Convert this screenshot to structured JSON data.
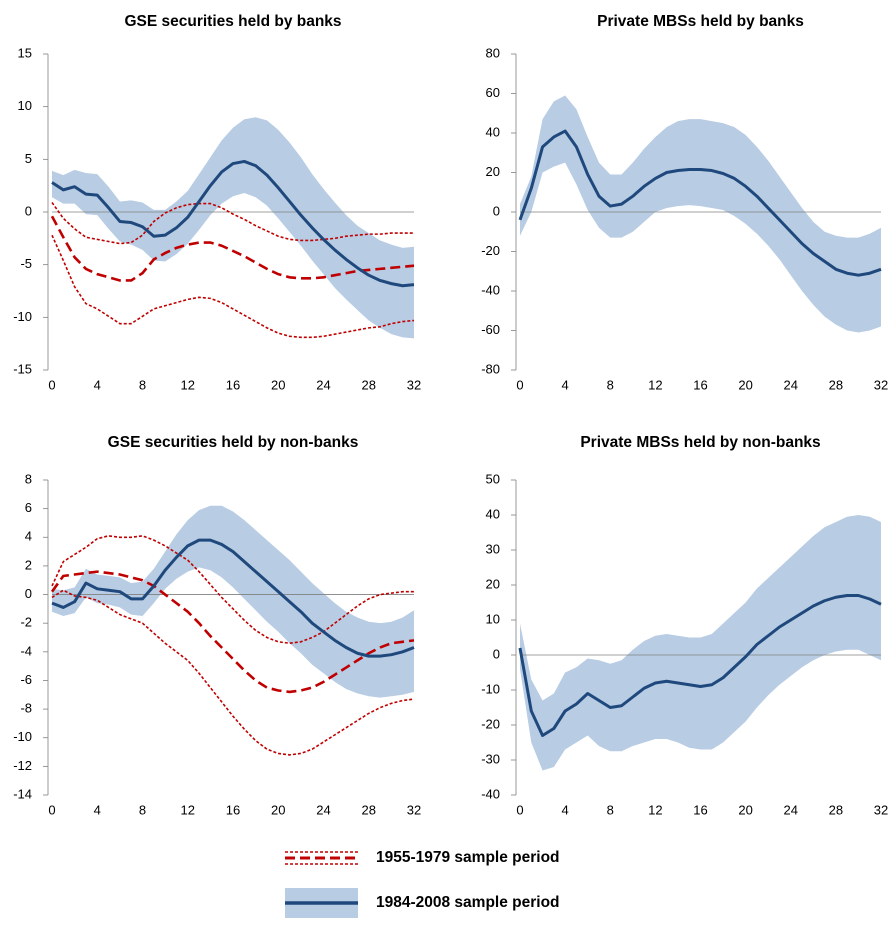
{
  "chart_data": [
    {
      "type": "line",
      "title": "GSE securities held by banks",
      "x": [
        0,
        1,
        2,
        3,
        4,
        5,
        6,
        7,
        8,
        9,
        10,
        11,
        12,
        13,
        14,
        15,
        16,
        17,
        18,
        19,
        20,
        21,
        22,
        23,
        24,
        25,
        26,
        27,
        28,
        29,
        30,
        31,
        32
      ],
      "xlim": [
        0,
        32
      ],
      "xticks": [
        0,
        4,
        8,
        12,
        16,
        20,
        24,
        28,
        32
      ],
      "ylim": [
        -15,
        15
      ],
      "yticks": [
        -15,
        -10,
        -5,
        0,
        5,
        10,
        15
      ],
      "series": [
        {
          "name": "1984-2008 sample period",
          "color": "#1f497d",
          "band_color": "#b8cce4",
          "values": [
            2.8,
            2.1,
            2.4,
            1.7,
            1.6,
            0.4,
            -0.9,
            -1.0,
            -1.4,
            -2.3,
            -2.2,
            -1.5,
            -0.5,
            1.0,
            2.5,
            3.8,
            4.6,
            4.8,
            4.4,
            3.5,
            2.3,
            1.0,
            -0.3,
            -1.5,
            -2.6,
            -3.6,
            -4.5,
            -5.3,
            -6.0,
            -6.5,
            -6.8,
            -7.0,
            -6.9
          ],
          "upper": [
            3.9,
            3.5,
            4.0,
            3.7,
            3.6,
            2.4,
            1.0,
            1.1,
            0.9,
            0.2,
            0.2,
            1.0,
            2.0,
            3.6,
            5.2,
            6.8,
            8.0,
            8.8,
            9.0,
            8.7,
            7.8,
            6.6,
            5.2,
            3.6,
            2.2,
            0.9,
            -0.3,
            -1.3,
            -2.0,
            -2.7,
            -3.1,
            -3.4,
            -3.3
          ],
          "lower": [
            1.4,
            0.8,
            0.8,
            -0.2,
            -0.3,
            -1.6,
            -2.8,
            -3.1,
            -3.6,
            -4.6,
            -4.7,
            -4.0,
            -3.0,
            -1.7,
            -0.3,
            0.8,
            1.5,
            1.8,
            1.4,
            0.6,
            -0.6,
            -1.9,
            -3.2,
            -4.6,
            -5.9,
            -7.2,
            -8.3,
            -9.3,
            -10.3,
            -11.0,
            -11.6,
            -11.9,
            -12.0
          ]
        },
        {
          "name": "1955-1979 sample period",
          "color": "#c00000",
          "values": [
            -0.4,
            -2.4,
            -4.3,
            -5.4,
            -5.9,
            -6.2,
            -6.5,
            -6.5,
            -5.8,
            -4.5,
            -3.9,
            -3.4,
            -3.1,
            -2.9,
            -2.9,
            -3.2,
            -3.7,
            -4.2,
            -4.8,
            -5.4,
            -5.9,
            -6.2,
            -6.3,
            -6.3,
            -6.2,
            -6.0,
            -5.8,
            -5.6,
            -5.5,
            -5.4,
            -5.3,
            -5.2,
            -5.1
          ],
          "upper": [
            0.9,
            -0.6,
            -1.6,
            -2.4,
            -2.6,
            -2.8,
            -3.0,
            -2.9,
            -2.2,
            -0.9,
            -0.1,
            0.4,
            0.7,
            0.8,
            0.8,
            0.4,
            -0.2,
            -0.7,
            -1.3,
            -1.8,
            -2.3,
            -2.6,
            -2.7,
            -2.7,
            -2.6,
            -2.5,
            -2.3,
            -2.2,
            -2.1,
            -2.1,
            -2.0,
            -2.0,
            -2.0
          ],
          "lower": [
            -2.2,
            -4.6,
            -7.1,
            -8.7,
            -9.2,
            -9.9,
            -10.6,
            -10.6,
            -9.9,
            -9.2,
            -8.9,
            -8.6,
            -8.3,
            -8.1,
            -8.2,
            -8.6,
            -9.2,
            -9.8,
            -10.4,
            -11.0,
            -11.5,
            -11.8,
            -11.9,
            -11.9,
            -11.8,
            -11.6,
            -11.4,
            -11.2,
            -11.0,
            -10.9,
            -10.6,
            -10.4,
            -10.3
          ]
        }
      ]
    },
    {
      "type": "line",
      "title": "Private MBSs held by banks",
      "x": [
        0,
        1,
        2,
        3,
        4,
        5,
        6,
        7,
        8,
        9,
        10,
        11,
        12,
        13,
        14,
        15,
        16,
        17,
        18,
        19,
        20,
        21,
        22,
        23,
        24,
        25,
        26,
        27,
        28,
        29,
        30,
        31,
        32
      ],
      "xlim": [
        0,
        32
      ],
      "xticks": [
        0,
        4,
        8,
        12,
        16,
        20,
        24,
        28,
        32
      ],
      "ylim": [
        -80,
        80
      ],
      "yticks": [
        -80,
        -60,
        -40,
        -20,
        0,
        20,
        40,
        60,
        80
      ],
      "series": [
        {
          "color": "#1f497d",
          "band_color": "#b8cce4",
          "values": [
            -4,
            12,
            33,
            38,
            41,
            33,
            19,
            8,
            3,
            4,
            8,
            13,
            17,
            20,
            21,
            21.5,
            21.5,
            21,
            19.5,
            17,
            13,
            8,
            2,
            -4,
            -10,
            -16,
            -21,
            -25,
            -29,
            -31,
            -32,
            -31,
            -29
          ],
          "upper": [
            4,
            18,
            47,
            56,
            59,
            52,
            38,
            25,
            19,
            19,
            25,
            32,
            38,
            43,
            46,
            47,
            47,
            46,
            45,
            43,
            39,
            33,
            26,
            18,
            10,
            2,
            -5,
            -10,
            -12,
            -13,
            -13,
            -11,
            -8
          ],
          "lower": [
            -12,
            0,
            20,
            23,
            25,
            14,
            1,
            -8,
            -13,
            -13,
            -10,
            -5,
            0,
            2,
            3,
            3.5,
            3,
            2,
            1,
            -2,
            -6,
            -11,
            -17,
            -24,
            -32,
            -40,
            -47,
            -53,
            -57,
            -60,
            -61,
            -60,
            -58
          ]
        }
      ]
    },
    {
      "type": "line",
      "title": "GSE securities held by non-banks",
      "x": [
        0,
        1,
        2,
        3,
        4,
        5,
        6,
        7,
        8,
        9,
        10,
        11,
        12,
        13,
        14,
        15,
        16,
        17,
        18,
        19,
        20,
        21,
        22,
        23,
        24,
        25,
        26,
        27,
        28,
        29,
        30,
        31,
        32
      ],
      "xlim": [
        0,
        32
      ],
      "xticks": [
        0,
        4,
        8,
        12,
        16,
        20,
        24,
        28,
        32
      ],
      "ylim": [
        -14,
        8
      ],
      "yticks": [
        -14,
        -12,
        -10,
        -8,
        -6,
        -4,
        -2,
        0,
        2,
        4,
        6,
        8
      ],
      "series": [
        {
          "color": "#1f497d",
          "band_color": "#b8cce4",
          "values": [
            -0.6,
            -0.9,
            -0.5,
            0.8,
            0.4,
            0.3,
            0.2,
            -0.3,
            -0.3,
            0.6,
            1.7,
            2.6,
            3.4,
            3.8,
            3.8,
            3.5,
            3.0,
            2.3,
            1.6,
            0.9,
            0.2,
            -0.5,
            -1.2,
            -2.0,
            -2.6,
            -3.2,
            -3.7,
            -4.1,
            -4.3,
            -4.3,
            -4.2,
            -4.0,
            -3.7
          ],
          "upper": [
            0.4,
            0.3,
            0.5,
            1.8,
            1.4,
            1.3,
            1.2,
            0.8,
            0.9,
            1.8,
            3.0,
            4.2,
            5.2,
            5.9,
            6.2,
            6.2,
            5.8,
            5.2,
            4.5,
            3.8,
            3.1,
            2.4,
            1.6,
            0.8,
            0.1,
            -0.6,
            -1.2,
            -1.6,
            -1.9,
            -2.0,
            -1.9,
            -1.6,
            -1.1
          ],
          "lower": [
            -1.2,
            -1.5,
            -1.3,
            -0.2,
            -0.6,
            -0.7,
            -0.9,
            -1.4,
            -1.5,
            -0.6,
            0.4,
            1.1,
            1.6,
            1.9,
            1.7,
            1.2,
            0.5,
            -0.3,
            -1.1,
            -1.9,
            -2.6,
            -3.4,
            -4.1,
            -4.9,
            -5.5,
            -6.1,
            -6.6,
            -6.9,
            -7.1,
            -7.2,
            -7.1,
            -7.0,
            -6.8
          ]
        },
        {
          "color": "#c00000",
          "values": [
            0.2,
            1.3,
            1.4,
            1.5,
            1.6,
            1.5,
            1.4,
            1.2,
            1.0,
            0.6,
            0.0,
            -0.6,
            -1.2,
            -2.0,
            -2.9,
            -3.7,
            -4.5,
            -5.3,
            -6.0,
            -6.5,
            -6.7,
            -6.8,
            -6.7,
            -6.5,
            -6.1,
            -5.6,
            -5.1,
            -4.6,
            -4.1,
            -3.7,
            -3.4,
            -3.3,
            -3.2
          ],
          "upper": [
            0.6,
            2.3,
            2.8,
            3.3,
            3.9,
            4.1,
            4.0,
            4.0,
            4.1,
            3.8,
            3.4,
            2.9,
            2.4,
            1.6,
            0.7,
            -0.2,
            -1.0,
            -1.8,
            -2.5,
            -3.0,
            -3.3,
            -3.4,
            -3.3,
            -3.0,
            -2.6,
            -2.0,
            -1.4,
            -0.8,
            -0.3,
            0.0,
            0.1,
            0.2,
            0.2
          ],
          "lower": [
            -0.2,
            0.3,
            -0.1,
            -0.2,
            -0.4,
            -0.9,
            -1.4,
            -1.7,
            -2.0,
            -2.7,
            -3.4,
            -4.0,
            -4.6,
            -5.5,
            -6.5,
            -7.5,
            -8.5,
            -9.4,
            -10.2,
            -10.8,
            -11.1,
            -11.2,
            -11.1,
            -10.8,
            -10.3,
            -9.8,
            -9.3,
            -8.8,
            -8.3,
            -7.9,
            -7.6,
            -7.4,
            -7.3
          ]
        }
      ]
    },
    {
      "type": "line",
      "title": "Private MBSs held by non-banks",
      "x": [
        0,
        1,
        2,
        3,
        4,
        5,
        6,
        7,
        8,
        9,
        10,
        11,
        12,
        13,
        14,
        15,
        16,
        17,
        18,
        19,
        20,
        21,
        22,
        23,
        24,
        25,
        26,
        27,
        28,
        29,
        30,
        31,
        32
      ],
      "xlim": [
        0,
        32
      ],
      "xticks": [
        0,
        4,
        8,
        12,
        16,
        20,
        24,
        28,
        32
      ],
      "ylim": [
        -40,
        50
      ],
      "yticks": [
        -40,
        -30,
        -20,
        -10,
        0,
        10,
        20,
        30,
        40,
        50
      ],
      "series": [
        {
          "color": "#1f497d",
          "band_color": "#b8cce4",
          "values": [
            2,
            -16,
            -23,
            -21,
            -16,
            -14,
            -11,
            -13,
            -15,
            -14.5,
            -12,
            -9.5,
            -8,
            -7.5,
            -8,
            -8.5,
            -9,
            -8.5,
            -6.5,
            -3.5,
            -0.5,
            3,
            5.5,
            8,
            10,
            12,
            14,
            15.5,
            16.5,
            17,
            17,
            16,
            14.5
          ],
          "upper": [
            9,
            -7,
            -13,
            -11,
            -5,
            -3.5,
            -1,
            -1.5,
            -2.5,
            -1.5,
            1.5,
            4,
            5.5,
            6,
            5.5,
            5,
            5,
            6,
            9,
            12,
            15,
            19,
            22,
            25,
            28,
            31,
            34,
            36.5,
            38,
            39.5,
            40,
            39.5,
            38
          ],
          "lower": [
            -4,
            -25,
            -33,
            -32,
            -27,
            -25,
            -23,
            -26,
            -27.5,
            -27.5,
            -26,
            -25,
            -24,
            -24,
            -25,
            -26.5,
            -27,
            -27,
            -25,
            -22,
            -19,
            -15,
            -11.5,
            -8.5,
            -6,
            -3.5,
            -1.5,
            0,
            1,
            1.5,
            1.5,
            0,
            -1.5
          ]
        }
      ]
    }
  ]
}
